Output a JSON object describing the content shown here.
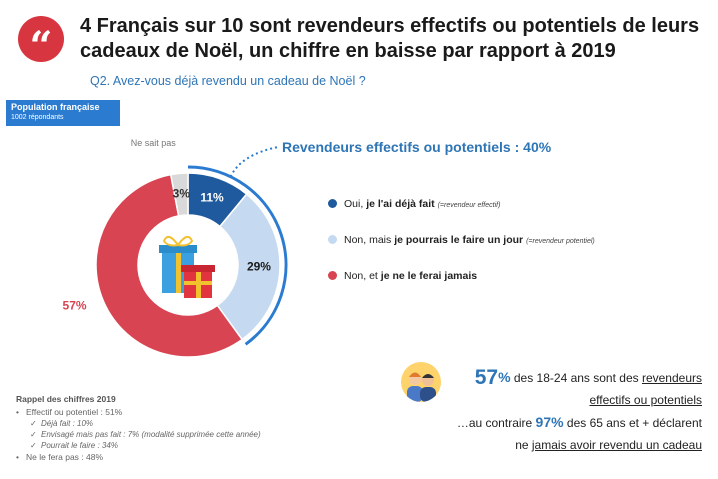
{
  "header": {
    "quote_mark": "“",
    "title": "4 Français sur 10 sont revendeurs effectifs ou potentiels de leurs cadeaux de Noël, un chiffre en baisse par rapport à 2019",
    "question": "Q2. Avez-vous déjà revendu un cadeau de Noël ?"
  },
  "population": {
    "title": "Population française",
    "subtitle": "1002 répondants"
  },
  "callout": "Revendeurs effectifs ou potentiels : 40%",
  "legend": [
    {
      "pre": "Oui, ",
      "bold": "je l'ai déjà fait",
      "post": " ",
      "small": "(=revendeur effectif)",
      "color": "#1f5a9e"
    },
    {
      "pre": "Non, mais ",
      "bold": "je pourrais le faire un jour",
      "post": " ",
      "small": "(=revendeur potentiel)",
      "color": "#c5d9f0"
    },
    {
      "pre": "Non, et ",
      "bold": "je ne le ferai jamais",
      "post": "",
      "small": "",
      "color": "#d94452"
    }
  ],
  "chart_data": {
    "type": "pie",
    "variant": "donut",
    "slices": [
      {
        "label": "Oui, je l'ai déjà fait",
        "value": 11,
        "display": "11%",
        "color": "#1f5a9e"
      },
      {
        "label": "Non, mais je pourrais le faire un jour",
        "value": 29,
        "display": "29%",
        "color": "#c5d9f0"
      },
      {
        "label": "Non, et je ne le ferai jamais",
        "value": 57,
        "display": "57%",
        "color": "#d94452"
      },
      {
        "label": "Ne sait pas",
        "value": 3,
        "display": "3%",
        "color": "#d9d9d9"
      }
    ],
    "outside_label": "Ne sait pas"
  },
  "recall": {
    "title": "Rappel des chiffres 2019",
    "line1": "Effectif ou potentiel : 51%",
    "sub1": "Déjà fait : 10%",
    "sub2": "Envisagé mais pas fait : 7% (modalité supprimée cette année)",
    "sub3": "Pourrait le faire : 34%",
    "line2": "Ne le fera pas : 48%"
  },
  "stat": {
    "pct1": "57",
    "pct_sign": "%",
    "text1": " des 18-24 ans sont des ",
    "text1_ul": "revendeurs",
    "line2_ul": "effectifs ou potentiels",
    "text3a": "…au contraire ",
    "pct2": "97%",
    "text3b": " des 65 ans et + déclarent",
    "text4a": "ne ",
    "text4_ul": "jamais avoir revendu un cadeau"
  }
}
